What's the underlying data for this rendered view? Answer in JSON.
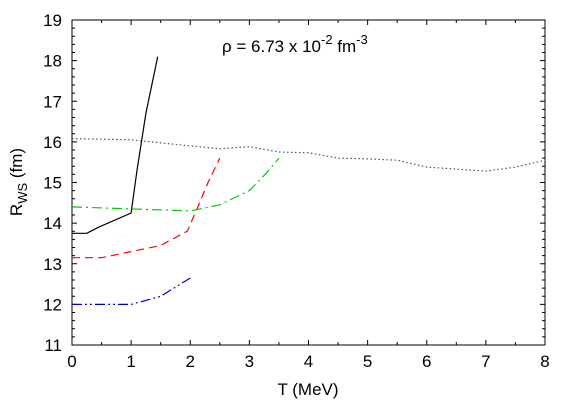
{
  "chart_data": {
    "type": "line",
    "xlabel": "T (MeV)",
    "ylabel_main": "R",
    "ylabel_sub": "WS",
    "ylabel_tail": " (fm)",
    "annotation": {
      "prefix": "ρ = 6.73 x 10",
      "exp1": "-2",
      "unit": " fm",
      "exp2": "-3"
    },
    "xlim": [
      0,
      8
    ],
    "ylim": [
      11,
      19
    ],
    "xticks": [
      0,
      1,
      2,
      3,
      4,
      5,
      6,
      7,
      8
    ],
    "yticks": [
      11,
      12,
      13,
      14,
      15,
      16,
      17,
      18,
      19
    ],
    "grid": false,
    "series": [
      {
        "color": "#000000",
        "dash": "solid",
        "points": [
          [
            0,
            13.75
          ],
          [
            0.25,
            13.75
          ],
          [
            0.45,
            13.9
          ],
          [
            1.0,
            14.25
          ],
          [
            1.1,
            15.3
          ],
          [
            1.25,
            16.7
          ],
          [
            1.45,
            18.1
          ]
        ]
      },
      {
        "color": "#ff0000",
        "dash": "dashed",
        "points": [
          [
            0,
            13.15
          ],
          [
            0.5,
            13.15
          ],
          [
            1.0,
            13.3
          ],
          [
            1.5,
            13.45
          ],
          [
            1.95,
            13.8
          ],
          [
            2.1,
            14.3
          ],
          [
            2.3,
            15.0
          ],
          [
            2.5,
            15.6
          ]
        ]
      },
      {
        "color": "#00cc00",
        "dash": "dashdot",
        "points": [
          [
            0,
            14.4
          ],
          [
            1.0,
            14.35
          ],
          [
            2.0,
            14.3
          ],
          [
            2.5,
            14.45
          ],
          [
            3.0,
            14.8
          ],
          [
            3.3,
            15.25
          ],
          [
            3.5,
            15.6
          ]
        ]
      },
      {
        "color": "#0000cc",
        "dash": "dashdotdot",
        "points": [
          [
            0,
            12.0
          ],
          [
            0.5,
            12.0
          ],
          [
            1.0,
            12.0
          ],
          [
            1.5,
            12.2
          ],
          [
            2.0,
            12.65
          ]
        ]
      },
      {
        "color": "#555555",
        "dash": "dotted",
        "points": [
          [
            0,
            16.08
          ],
          [
            1.0,
            16.05
          ],
          [
            2.0,
            15.9
          ],
          [
            2.5,
            15.83
          ],
          [
            3.0,
            15.88
          ],
          [
            3.5,
            15.75
          ],
          [
            4.0,
            15.73
          ],
          [
            4.5,
            15.6
          ],
          [
            5.0,
            15.58
          ],
          [
            5.5,
            15.55
          ],
          [
            6.0,
            15.38
          ],
          [
            6.5,
            15.33
          ],
          [
            7.0,
            15.28
          ],
          [
            7.5,
            15.38
          ],
          [
            8.0,
            15.55
          ]
        ]
      }
    ]
  }
}
